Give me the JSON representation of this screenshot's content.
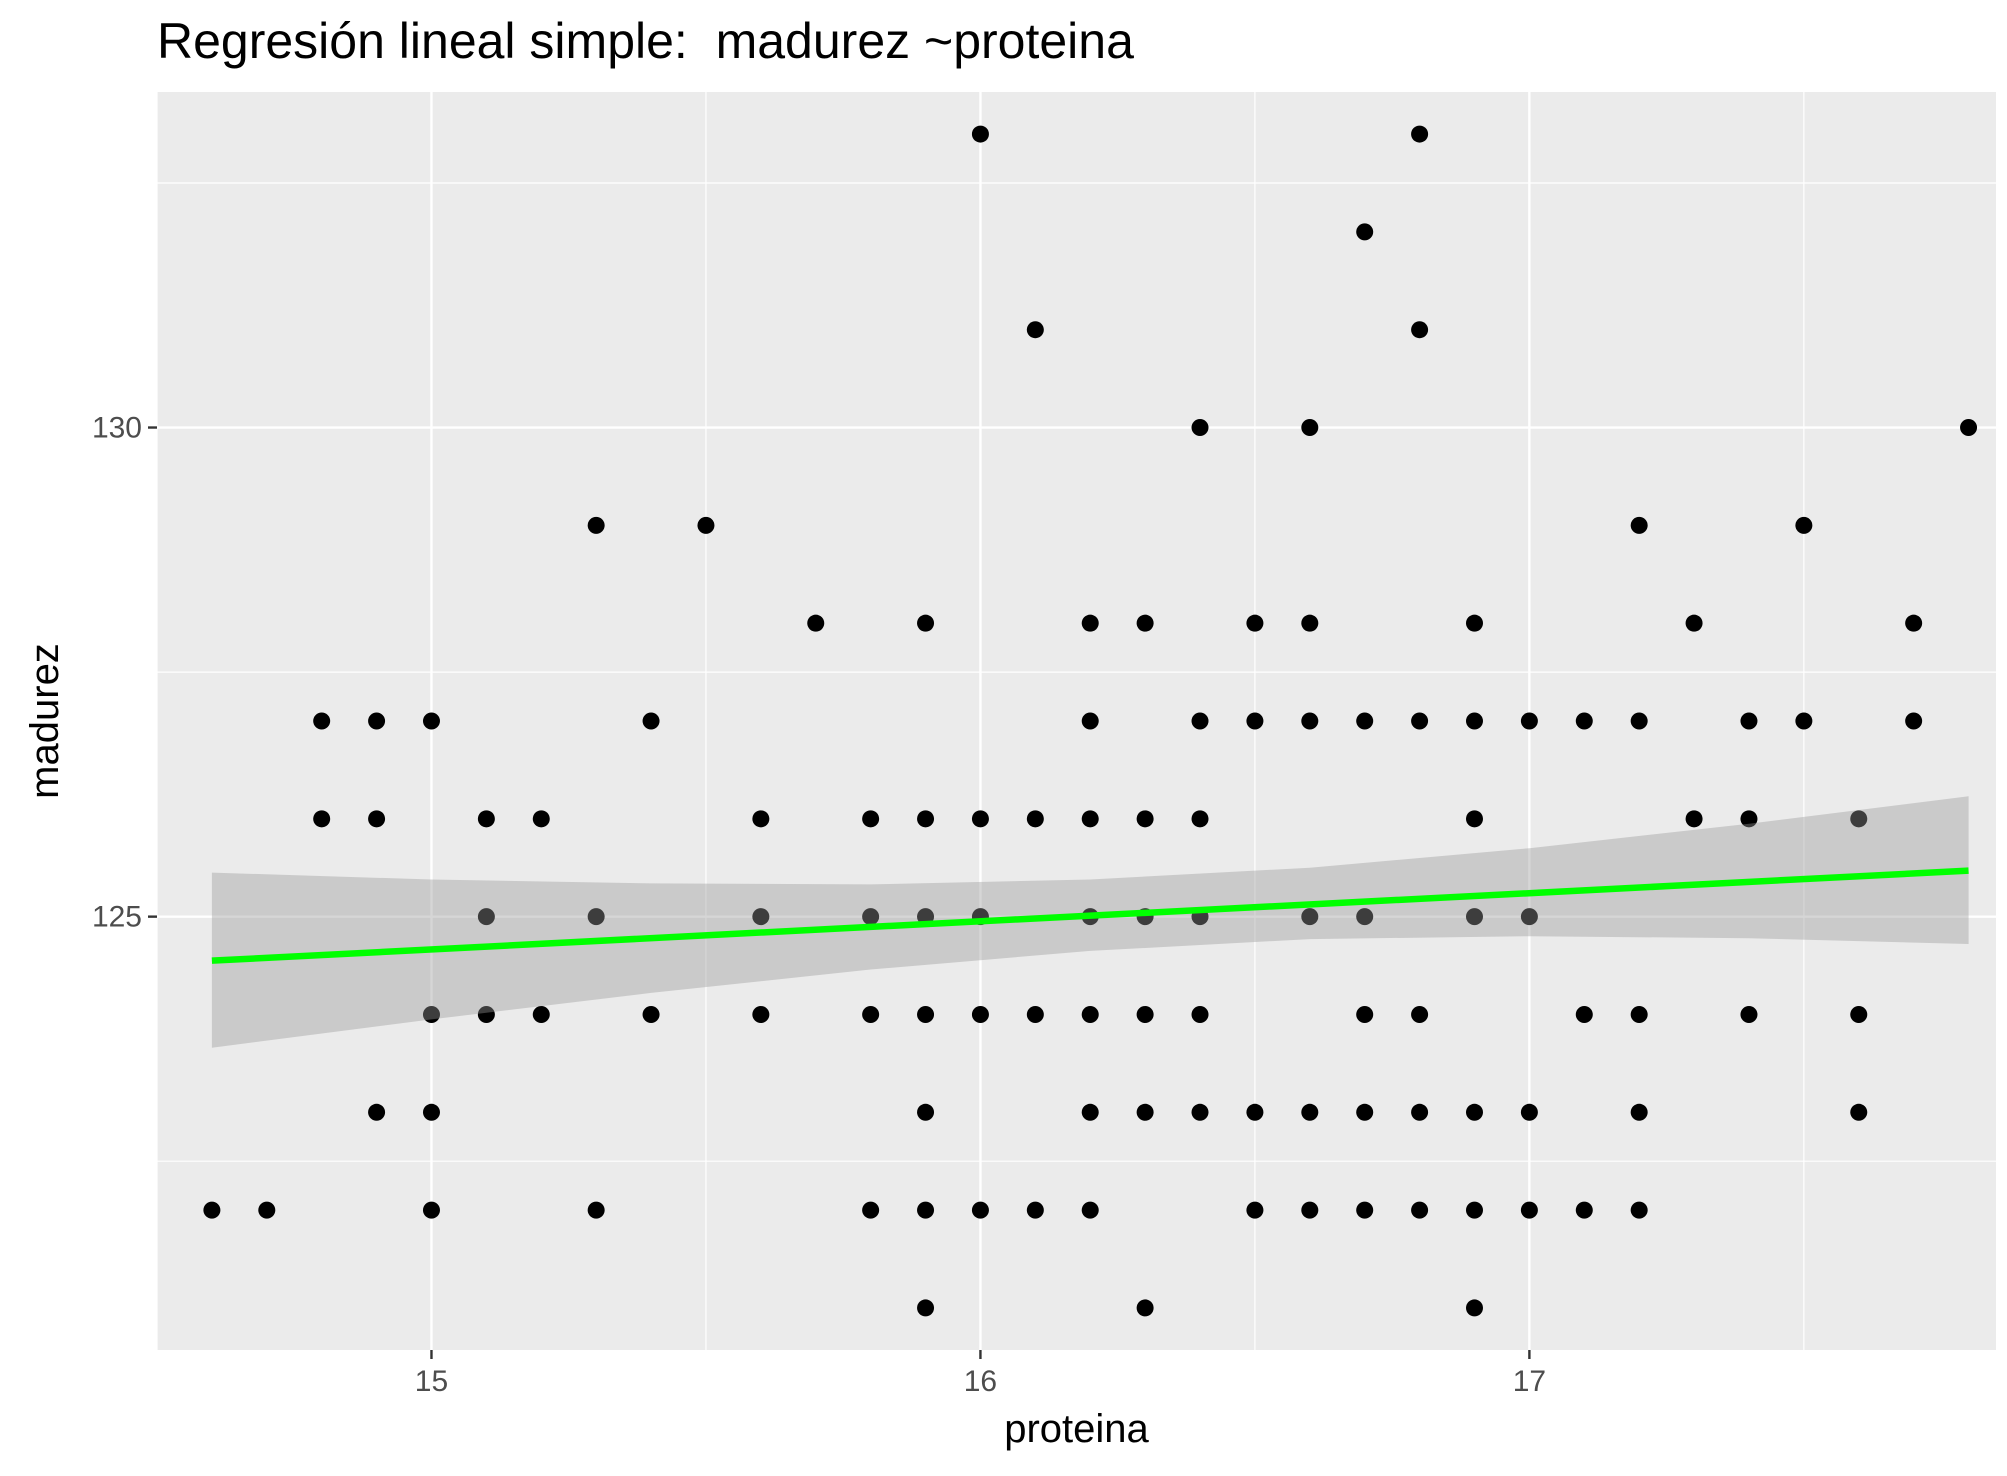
{
  "chart_data": {
    "type": "scatter",
    "title": "Regresión lineal simple:  madurez ~proteina",
    "xlabel": "proteina",
    "ylabel": "madurez",
    "xlim": [
      14.5,
      17.85
    ],
    "ylim": [
      120.57,
      133.43
    ],
    "x_ticks": [
      15,
      16,
      17
    ],
    "x_tick_labels": [
      "15",
      "16",
      "17"
    ],
    "x_minor_ticks": [
      14.5,
      15.5,
      16.5,
      17.5
    ],
    "y_ticks": [
      125,
      130
    ],
    "y_tick_labels": [
      "125",
      "130"
    ],
    "y_minor_ticks": [
      122.5,
      127.5,
      132.5
    ],
    "grid": true,
    "colors": {
      "panel": "#ebebeb",
      "grid": "#ffffff",
      "points": "#000000",
      "fit_line": "#00ff00",
      "confidence_band": "#999999"
    },
    "points": [
      {
        "x": 14.6,
        "y": 122
      },
      {
        "x": 14.7,
        "y": 122
      },
      {
        "x": 14.8,
        "y": 126
      },
      {
        "x": 14.8,
        "y": 127
      },
      {
        "x": 14.9,
        "y": 126
      },
      {
        "x": 14.9,
        "y": 127
      },
      {
        "x": 14.9,
        "y": 123
      },
      {
        "x": 15.0,
        "y": 127
      },
      {
        "x": 15.0,
        "y": 124
      },
      {
        "x": 15.0,
        "y": 123
      },
      {
        "x": 15.0,
        "y": 122
      },
      {
        "x": 15.1,
        "y": 126
      },
      {
        "x": 15.1,
        "y": 125
      },
      {
        "x": 15.1,
        "y": 124
      },
      {
        "x": 15.2,
        "y": 126
      },
      {
        "x": 15.2,
        "y": 124
      },
      {
        "x": 15.3,
        "y": 129
      },
      {
        "x": 15.3,
        "y": 125
      },
      {
        "x": 15.3,
        "y": 122
      },
      {
        "x": 15.4,
        "y": 127
      },
      {
        "x": 15.4,
        "y": 124
      },
      {
        "x": 15.5,
        "y": 129
      },
      {
        "x": 15.6,
        "y": 126
      },
      {
        "x": 15.6,
        "y": 125
      },
      {
        "x": 15.6,
        "y": 124
      },
      {
        "x": 15.7,
        "y": 128
      },
      {
        "x": 15.8,
        "y": 126
      },
      {
        "x": 15.8,
        "y": 125
      },
      {
        "x": 15.8,
        "y": 124
      },
      {
        "x": 15.8,
        "y": 122
      },
      {
        "x": 15.9,
        "y": 128
      },
      {
        "x": 15.9,
        "y": 126
      },
      {
        "x": 15.9,
        "y": 125
      },
      {
        "x": 15.9,
        "y": 124
      },
      {
        "x": 15.9,
        "y": 123
      },
      {
        "x": 15.9,
        "y": 122
      },
      {
        "x": 15.9,
        "y": 121
      },
      {
        "x": 16.0,
        "y": 133
      },
      {
        "x": 16.0,
        "y": 126
      },
      {
        "x": 16.0,
        "y": 125
      },
      {
        "x": 16.0,
        "y": 124
      },
      {
        "x": 16.0,
        "y": 122
      },
      {
        "x": 16.1,
        "y": 131
      },
      {
        "x": 16.1,
        "y": 126
      },
      {
        "x": 16.1,
        "y": 124
      },
      {
        "x": 16.1,
        "y": 122
      },
      {
        "x": 16.2,
        "y": 128
      },
      {
        "x": 16.2,
        "y": 127
      },
      {
        "x": 16.2,
        "y": 126
      },
      {
        "x": 16.2,
        "y": 125
      },
      {
        "x": 16.2,
        "y": 124
      },
      {
        "x": 16.2,
        "y": 123
      },
      {
        "x": 16.2,
        "y": 122
      },
      {
        "x": 16.3,
        "y": 128
      },
      {
        "x": 16.3,
        "y": 126
      },
      {
        "x": 16.3,
        "y": 125
      },
      {
        "x": 16.3,
        "y": 124
      },
      {
        "x": 16.3,
        "y": 123
      },
      {
        "x": 16.3,
        "y": 121
      },
      {
        "x": 16.4,
        "y": 130
      },
      {
        "x": 16.4,
        "y": 127
      },
      {
        "x": 16.4,
        "y": 126
      },
      {
        "x": 16.4,
        "y": 125
      },
      {
        "x": 16.4,
        "y": 124
      },
      {
        "x": 16.4,
        "y": 123
      },
      {
        "x": 16.5,
        "y": 128
      },
      {
        "x": 16.5,
        "y": 127
      },
      {
        "x": 16.5,
        "y": 123
      },
      {
        "x": 16.5,
        "y": 122
      },
      {
        "x": 16.6,
        "y": 130
      },
      {
        "x": 16.6,
        "y": 128
      },
      {
        "x": 16.6,
        "y": 127
      },
      {
        "x": 16.6,
        "y": 125
      },
      {
        "x": 16.6,
        "y": 123
      },
      {
        "x": 16.6,
        "y": 122
      },
      {
        "x": 16.7,
        "y": 132
      },
      {
        "x": 16.7,
        "y": 127
      },
      {
        "x": 16.7,
        "y": 125
      },
      {
        "x": 16.7,
        "y": 124
      },
      {
        "x": 16.7,
        "y": 123
      },
      {
        "x": 16.7,
        "y": 122
      },
      {
        "x": 16.8,
        "y": 133
      },
      {
        "x": 16.8,
        "y": 131
      },
      {
        "x": 16.8,
        "y": 127
      },
      {
        "x": 16.8,
        "y": 124
      },
      {
        "x": 16.8,
        "y": 123
      },
      {
        "x": 16.8,
        "y": 122
      },
      {
        "x": 16.9,
        "y": 128
      },
      {
        "x": 16.9,
        "y": 127
      },
      {
        "x": 16.9,
        "y": 126
      },
      {
        "x": 16.9,
        "y": 125
      },
      {
        "x": 16.9,
        "y": 123
      },
      {
        "x": 16.9,
        "y": 122
      },
      {
        "x": 16.9,
        "y": 121
      },
      {
        "x": 17.0,
        "y": 127
      },
      {
        "x": 17.0,
        "y": 125
      },
      {
        "x": 17.0,
        "y": 123
      },
      {
        "x": 17.0,
        "y": 122
      },
      {
        "x": 17.1,
        "y": 127
      },
      {
        "x": 17.1,
        "y": 124
      },
      {
        "x": 17.1,
        "y": 122
      },
      {
        "x": 17.2,
        "y": 129
      },
      {
        "x": 17.2,
        "y": 127
      },
      {
        "x": 17.2,
        "y": 124
      },
      {
        "x": 17.2,
        "y": 123
      },
      {
        "x": 17.2,
        "y": 122
      },
      {
        "x": 17.3,
        "y": 128
      },
      {
        "x": 17.3,
        "y": 126
      },
      {
        "x": 17.4,
        "y": 127
      },
      {
        "x": 17.4,
        "y": 126
      },
      {
        "x": 17.4,
        "y": 124
      },
      {
        "x": 17.5,
        "y": 129
      },
      {
        "x": 17.5,
        "y": 127
      },
      {
        "x": 17.6,
        "y": 126
      },
      {
        "x": 17.6,
        "y": 124
      },
      {
        "x": 17.6,
        "y": 123
      },
      {
        "x": 17.7,
        "y": 128
      },
      {
        "x": 17.7,
        "y": 127
      },
      {
        "x": 17.8,
        "y": 130
      }
    ],
    "fit_line": {
      "x": [
        14.6,
        17.8
      ],
      "y": [
        124.55,
        125.47
      ]
    },
    "confidence_band": {
      "x": [
        14.6,
        15.0,
        15.4,
        15.8,
        16.2,
        16.6,
        17.0,
        17.4,
        17.8
      ],
      "lower": [
        123.66,
        123.95,
        124.22,
        124.46,
        124.65,
        124.77,
        124.8,
        124.78,
        124.72
      ],
      "upper": [
        125.45,
        125.38,
        125.34,
        125.33,
        125.38,
        125.5,
        125.7,
        125.95,
        126.23
      ]
    }
  }
}
